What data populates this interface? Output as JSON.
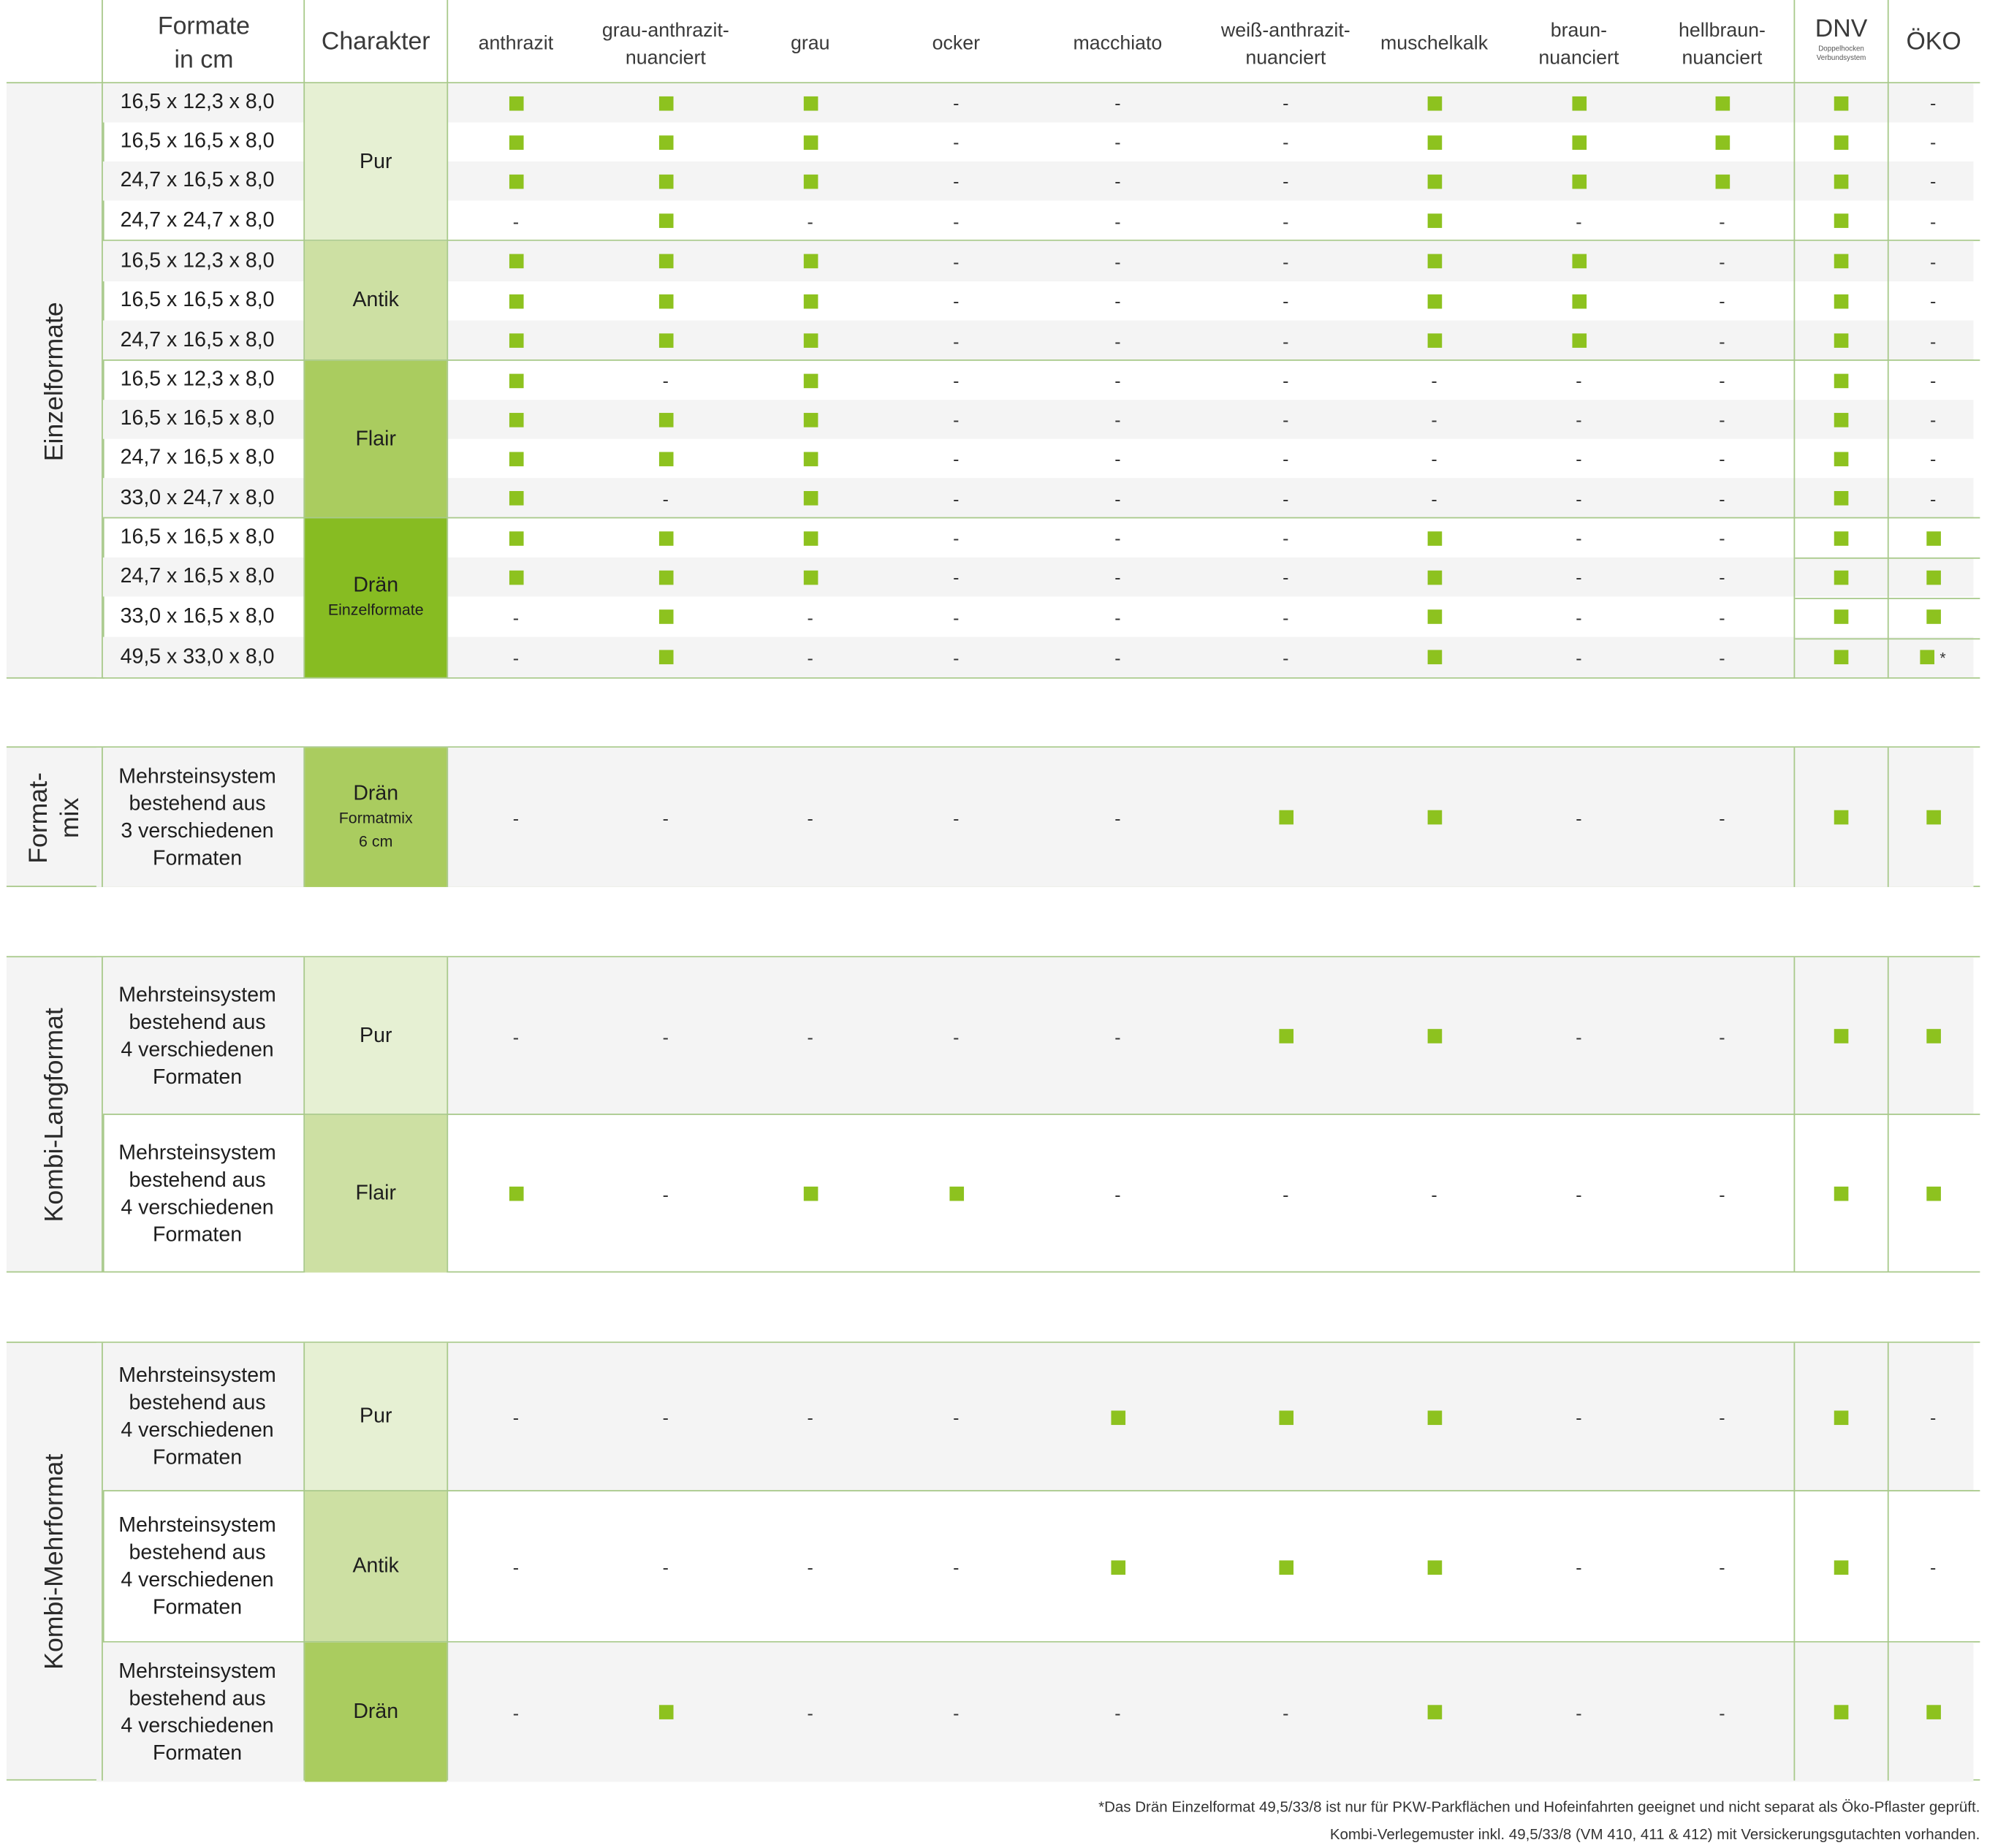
{
  "header": {
    "formate": [
      "Formate",
      "in cm"
    ],
    "charakter": "Charakter",
    "colors": [
      [
        "anthrazit"
      ],
      [
        "grau-anthrazit-",
        "nuanciert"
      ],
      [
        "grau"
      ],
      [
        "ocker"
      ],
      [
        "macchiato"
      ],
      [
        "weiß-anthrazit-",
        "nuanciert"
      ],
      [
        "muschelkalk"
      ],
      [
        "braun-",
        "nuanciert"
      ],
      [
        "hellbraun-",
        "nuanciert"
      ]
    ],
    "dnv": "DNV",
    "dnv_sub": [
      "Doppelhocken",
      "Verbundsystem"
    ],
    "oeko": "ÖKO"
  },
  "marks": {
    "yes": "■",
    "no": "-",
    "asterisk": "*"
  },
  "colors": {
    "accent_square": "#8dc21f",
    "char_pur": "#e6f0d3",
    "char_antik": "#cde0a3",
    "char_flair": "#aacc5f",
    "char_draen": "#87bc22",
    "divider": "#a8c98a",
    "row_alt": "#f4f4f4"
  },
  "sections": [
    {
      "label": "Einzelformate",
      "groups": [
        {
          "charakter": "Pur",
          "sub": "",
          "shade": "char_pur",
          "rows": [
            {
              "format": "16,5 x 12,3 x 8,0",
              "values": [
                "y",
                "y",
                "y",
                "-",
                "-",
                "-",
                "y",
                "y",
                "y",
                "y",
                "-"
              ]
            },
            {
              "format": "16,5 x 16,5 x 8,0",
              "values": [
                "y",
                "y",
                "y",
                "-",
                "-",
                "-",
                "y",
                "y",
                "y",
                "y",
                "-"
              ]
            },
            {
              "format": "24,7 x 16,5 x 8,0",
              "values": [
                "y",
                "y",
                "y",
                "-",
                "-",
                "-",
                "y",
                "y",
                "y",
                "y",
                "-"
              ]
            },
            {
              "format": "24,7 x 24,7 x 8,0",
              "values": [
                "-",
                "y",
                "-",
                "-",
                "-",
                "-",
                "y",
                "-",
                "-",
                "y",
                "-"
              ]
            }
          ]
        },
        {
          "charakter": "Antik",
          "sub": "",
          "shade": "char_antik",
          "rows": [
            {
              "format": "16,5 x 12,3 x 8,0",
              "values": [
                "y",
                "y",
                "y",
                "-",
                "-",
                "-",
                "y",
                "y",
                "-",
                "y",
                "-"
              ]
            },
            {
              "format": "16,5 x 16,5 x 8,0",
              "values": [
                "y",
                "y",
                "y",
                "-",
                "-",
                "-",
                "y",
                "y",
                "-",
                "y",
                "-"
              ]
            },
            {
              "format": "24,7 x 16,5 x 8,0",
              "values": [
                "y",
                "y",
                "y",
                "-",
                "-",
                "-",
                "y",
                "y",
                "-",
                "y",
                "-"
              ]
            }
          ]
        },
        {
          "charakter": "Flair",
          "sub": "",
          "shade": "char_flair",
          "rows": [
            {
              "format": "16,5 x 12,3 x 8,0",
              "values": [
                "y",
                "-",
                "y",
                "-",
                "-",
                "-",
                "-",
                "-",
                "-",
                "y",
                "-"
              ]
            },
            {
              "format": "16,5 x 16,5 x 8,0",
              "values": [
                "y",
                "y",
                "y",
                "-",
                "-",
                "-",
                "-",
                "-",
                "-",
                "y",
                "-"
              ]
            },
            {
              "format": "24,7 x 16,5 x 8,0",
              "values": [
                "y",
                "y",
                "y",
                "-",
                "-",
                "-",
                "-",
                "-",
                "-",
                "y",
                "-"
              ]
            },
            {
              "format": "33,0 x 24,7 x 8,0",
              "values": [
                "y",
                "-",
                "y",
                "-",
                "-",
                "-",
                "-",
                "-",
                "-",
                "y",
                "-"
              ]
            }
          ]
        },
        {
          "charakter": "Drän",
          "sub": "Einzelformate",
          "shade": "char_draen",
          "rows": [
            {
              "format": "16,5 x 16,5 x 8,0",
              "values": [
                "y",
                "y",
                "y",
                "-",
                "-",
                "-",
                "y",
                "-",
                "-",
                "y",
                "y"
              ]
            },
            {
              "format": "24,7 x 16,5 x 8,0",
              "values": [
                "y",
                "y",
                "y",
                "-",
                "-",
                "-",
                "y",
                "-",
                "-",
                "y",
                "y"
              ]
            },
            {
              "format": "33,0 x 16,5 x 8,0",
              "values": [
                "-",
                "y",
                "-",
                "-",
                "-",
                "-",
                "y",
                "-",
                "-",
                "y",
                "y"
              ]
            },
            {
              "format": "49,5 x 33,0 x 8,0",
              "values": [
                "-",
                "y",
                "-",
                "-",
                "-",
                "-",
                "y",
                "-",
                "-",
                "y",
                "y*"
              ]
            }
          ]
        }
      ]
    },
    {
      "label": "Format-mix",
      "groups": [
        {
          "charakter": "Drän",
          "sub": "Formatmix 6 cm",
          "shade": "char_flair",
          "rows": [
            {
              "desc": [
                "Mehrsteinsystem",
                "bestehend aus",
                "3 verschiedenen",
                "Formaten"
              ],
              "values": [
                "-",
                "-",
                "-",
                "-",
                "-",
                "y",
                "y",
                "-",
                "-",
                "y",
                "y"
              ]
            }
          ]
        }
      ]
    },
    {
      "label": "Kombi-Langformat",
      "groups": [
        {
          "charakter": "Pur",
          "sub": "",
          "shade": "char_pur",
          "rows": [
            {
              "desc": [
                "Mehrsteinsystem",
                "bestehend aus",
                "4 verschiedenen",
                "Formaten"
              ],
              "values": [
                "-",
                "-",
                "-",
                "-",
                "-",
                "y",
                "y",
                "-",
                "-",
                "y",
                "y"
              ]
            }
          ]
        },
        {
          "charakter": "Flair",
          "sub": "",
          "shade": "char_antik",
          "rows": [
            {
              "desc": [
                "Mehrsteinsystem",
                "bestehend aus",
                "4 verschiedenen",
                "Formaten"
              ],
              "values": [
                "y",
                "-",
                "y",
                "y",
                "-",
                "-",
                "-",
                "-",
                "-",
                "y",
                "y"
              ]
            }
          ]
        }
      ]
    },
    {
      "label": "Kombi-Mehrformat",
      "groups": [
        {
          "charakter": "Pur",
          "sub": "",
          "shade": "char_pur",
          "rows": [
            {
              "desc": [
                "Mehrsteinsystem",
                "bestehend aus",
                "4 verschiedenen",
                "Formaten"
              ],
              "values": [
                "-",
                "-",
                "-",
                "-",
                "y",
                "y",
                "y",
                "-",
                "-",
                "y",
                "-"
              ]
            }
          ]
        },
        {
          "charakter": "Antik",
          "sub": "",
          "shade": "char_antik",
          "rows": [
            {
              "desc": [
                "Mehrsteinsystem",
                "bestehend aus",
                "4 verschiedenen",
                "Formaten"
              ],
              "values": [
                "-",
                "-",
                "-",
                "-",
                "y",
                "y",
                "y",
                "-",
                "-",
                "y",
                "-"
              ]
            }
          ]
        },
        {
          "charakter": "Drän",
          "sub": "",
          "shade": "char_flair",
          "rows": [
            {
              "desc": [
                "Mehrsteinsystem",
                "bestehend aus",
                "4 verschiedenen",
                "Formaten"
              ],
              "values": [
                "-",
                "y",
                "-",
                "-",
                "-",
                "-",
                "y",
                "-",
                "-",
                "y",
                "y"
              ]
            }
          ]
        }
      ]
    }
  ],
  "footnote": [
    "*Das Drän Einzelformat 49,5/33/8 ist nur für PKW-Parkflächen und Hofeinfahrten geeignet und nicht separat als Öko-Pflaster geprüft.",
    "Kombi-Verlegemuster inkl. 49,5/33/8 (VM 410, 411 & 412) mit Versickerungsgutachten vorhanden."
  ]
}
